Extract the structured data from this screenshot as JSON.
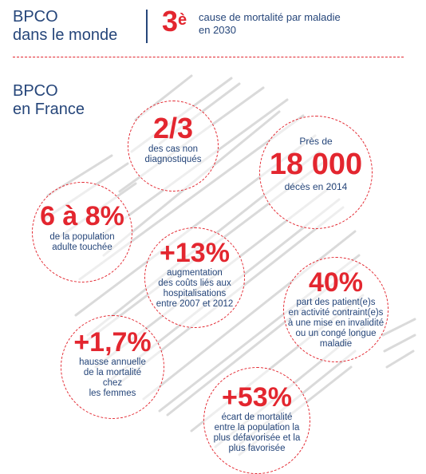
{
  "header": {
    "world_line1": "BPCO",
    "world_line2": "dans le monde",
    "rank_number": "3",
    "rank_suffix": "è",
    "rank_line1": "cause de mortalité par maladie",
    "rank_line2": "en 2030"
  },
  "france": {
    "line1": "BPCO",
    "line2": "en France"
  },
  "stats": {
    "undiagnosed": {
      "value": "2/3",
      "line1": "des cas non",
      "line2": "diagnostiqués"
    },
    "deaths": {
      "pre": "Près de",
      "value": "18 000",
      "line1": "décès en 2014"
    },
    "population": {
      "value": "6 à 8%",
      "line1": "de la population",
      "line2": "adulte touchée"
    },
    "costs": {
      "value": "+13%",
      "line1": "augmentation",
      "line2": "des coûts liés aux",
      "line3": "hospitalisations",
      "line4": "entre 2007 et 2012"
    },
    "patients": {
      "value": "40%",
      "line1": "part des patient(e)s",
      "line2": "en activité contraint(e)s",
      "line3": "à une mise en invalidité",
      "line4": "ou un congé longue",
      "line5": "maladie"
    },
    "women": {
      "value": "+1,7%",
      "line1": "hausse annuelle",
      "line2": "de la mortalité",
      "line3": "chez",
      "line4": "les femmes"
    },
    "gap": {
      "value": "+53%",
      "line1": "écart de mortalité",
      "line2": "entre la population la",
      "line3": "plus défavorisée et la",
      "line4": "plus favorisée"
    }
  },
  "colors": {
    "accent": "#e3262f",
    "text": "#26467a",
    "map": "#d9d9d9"
  }
}
